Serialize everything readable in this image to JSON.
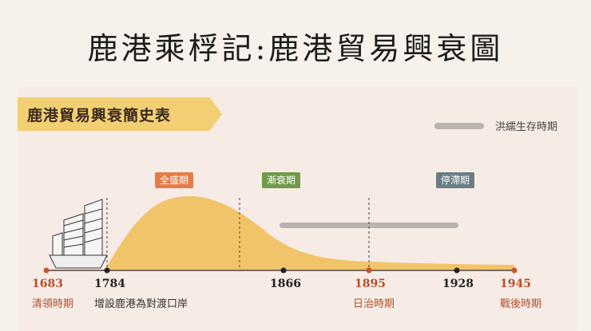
{
  "header": {
    "title": "鹿港乘桴記:鹿港貿易興衰圖"
  },
  "panel": {
    "title": "鹿港貿易興衰簡史表",
    "legend": {
      "label": "洪繻生存時期",
      "color": "#b8b3b0"
    }
  },
  "phases": [
    {
      "label": "全盛期",
      "color": "#e57c4a"
    },
    {
      "label": "漸衰期",
      "color": "#6f9a4a"
    },
    {
      "label": "停滯期",
      "color": "#6b7d86"
    }
  ],
  "timeline": [
    {
      "year": "1683",
      "caption": "清領時期"
    },
    {
      "year": "1784",
      "caption": "增設鹿港為對渡口岸"
    },
    {
      "year": "1866",
      "caption": ""
    },
    {
      "year": "1895",
      "caption": "日治時期"
    },
    {
      "year": "1928",
      "caption": ""
    },
    {
      "year": "1945",
      "caption": "戰後時期"
    }
  ],
  "colors": {
    "curve": "#f2c46a",
    "accent": "#c0582e",
    "axis": "#7a6a60"
  },
  "icons": {
    "ship": "junk-ship-icon"
  }
}
